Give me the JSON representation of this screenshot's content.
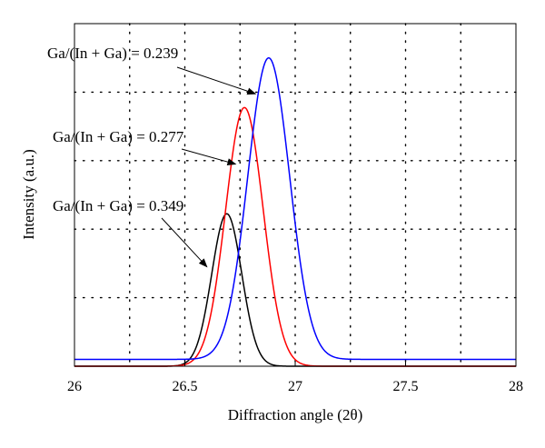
{
  "chart_data": {
    "type": "line",
    "title": "",
    "xlabel": "Diffraction angle (2θ)",
    "ylabel": "Intensity (a.u.)",
    "xlim": [
      26,
      28
    ],
    "ylim": [
      0,
      1
    ],
    "x_ticks": [
      26,
      26.5,
      27,
      27.5,
      28
    ],
    "x_tick_labels": [
      "26",
      "26.5",
      "27",
      "27.5",
      "28"
    ],
    "x_minor_gridlines": [
      26.25,
      26.5,
      26.75,
      27.0,
      27.25,
      27.5,
      27.75
    ],
    "y_gridlines": [
      0.2,
      0.4,
      0.6,
      0.8
    ],
    "grid": "dotted",
    "legend": "none",
    "series": [
      {
        "name": "Ga/(In + Ga) = 0.349",
        "color": "#000000",
        "peak_x": 26.69,
        "baseline": 0.0,
        "peak_height": 0.445,
        "sigma": 0.068
      },
      {
        "name": "Ga/(In + Ga) = 0.277",
        "color": "#ff0000",
        "peak_x": 26.77,
        "baseline": 0.0,
        "peak_height": 0.755,
        "sigma": 0.085
      },
      {
        "name": "Ga/(In + Ga) = 0.239",
        "color": "#0000ff",
        "peak_x": 26.88,
        "baseline": 0.02,
        "peak_height": 0.88,
        "sigma": 0.095
      }
    ],
    "annotations": [
      {
        "text": "Ga/(In + Ga) = 0.239",
        "series": 2,
        "arrow_to_x": 26.82,
        "arrow_to_y": 0.795
      },
      {
        "text": "Ga/(In + Ga) = 0.277",
        "series": 1,
        "arrow_to_x": 26.73,
        "arrow_to_y": 0.59
      },
      {
        "text": "Ga/(In + Ga) = 0.349",
        "series": 0,
        "arrow_to_x": 26.6,
        "arrow_to_y": 0.29
      }
    ]
  }
}
